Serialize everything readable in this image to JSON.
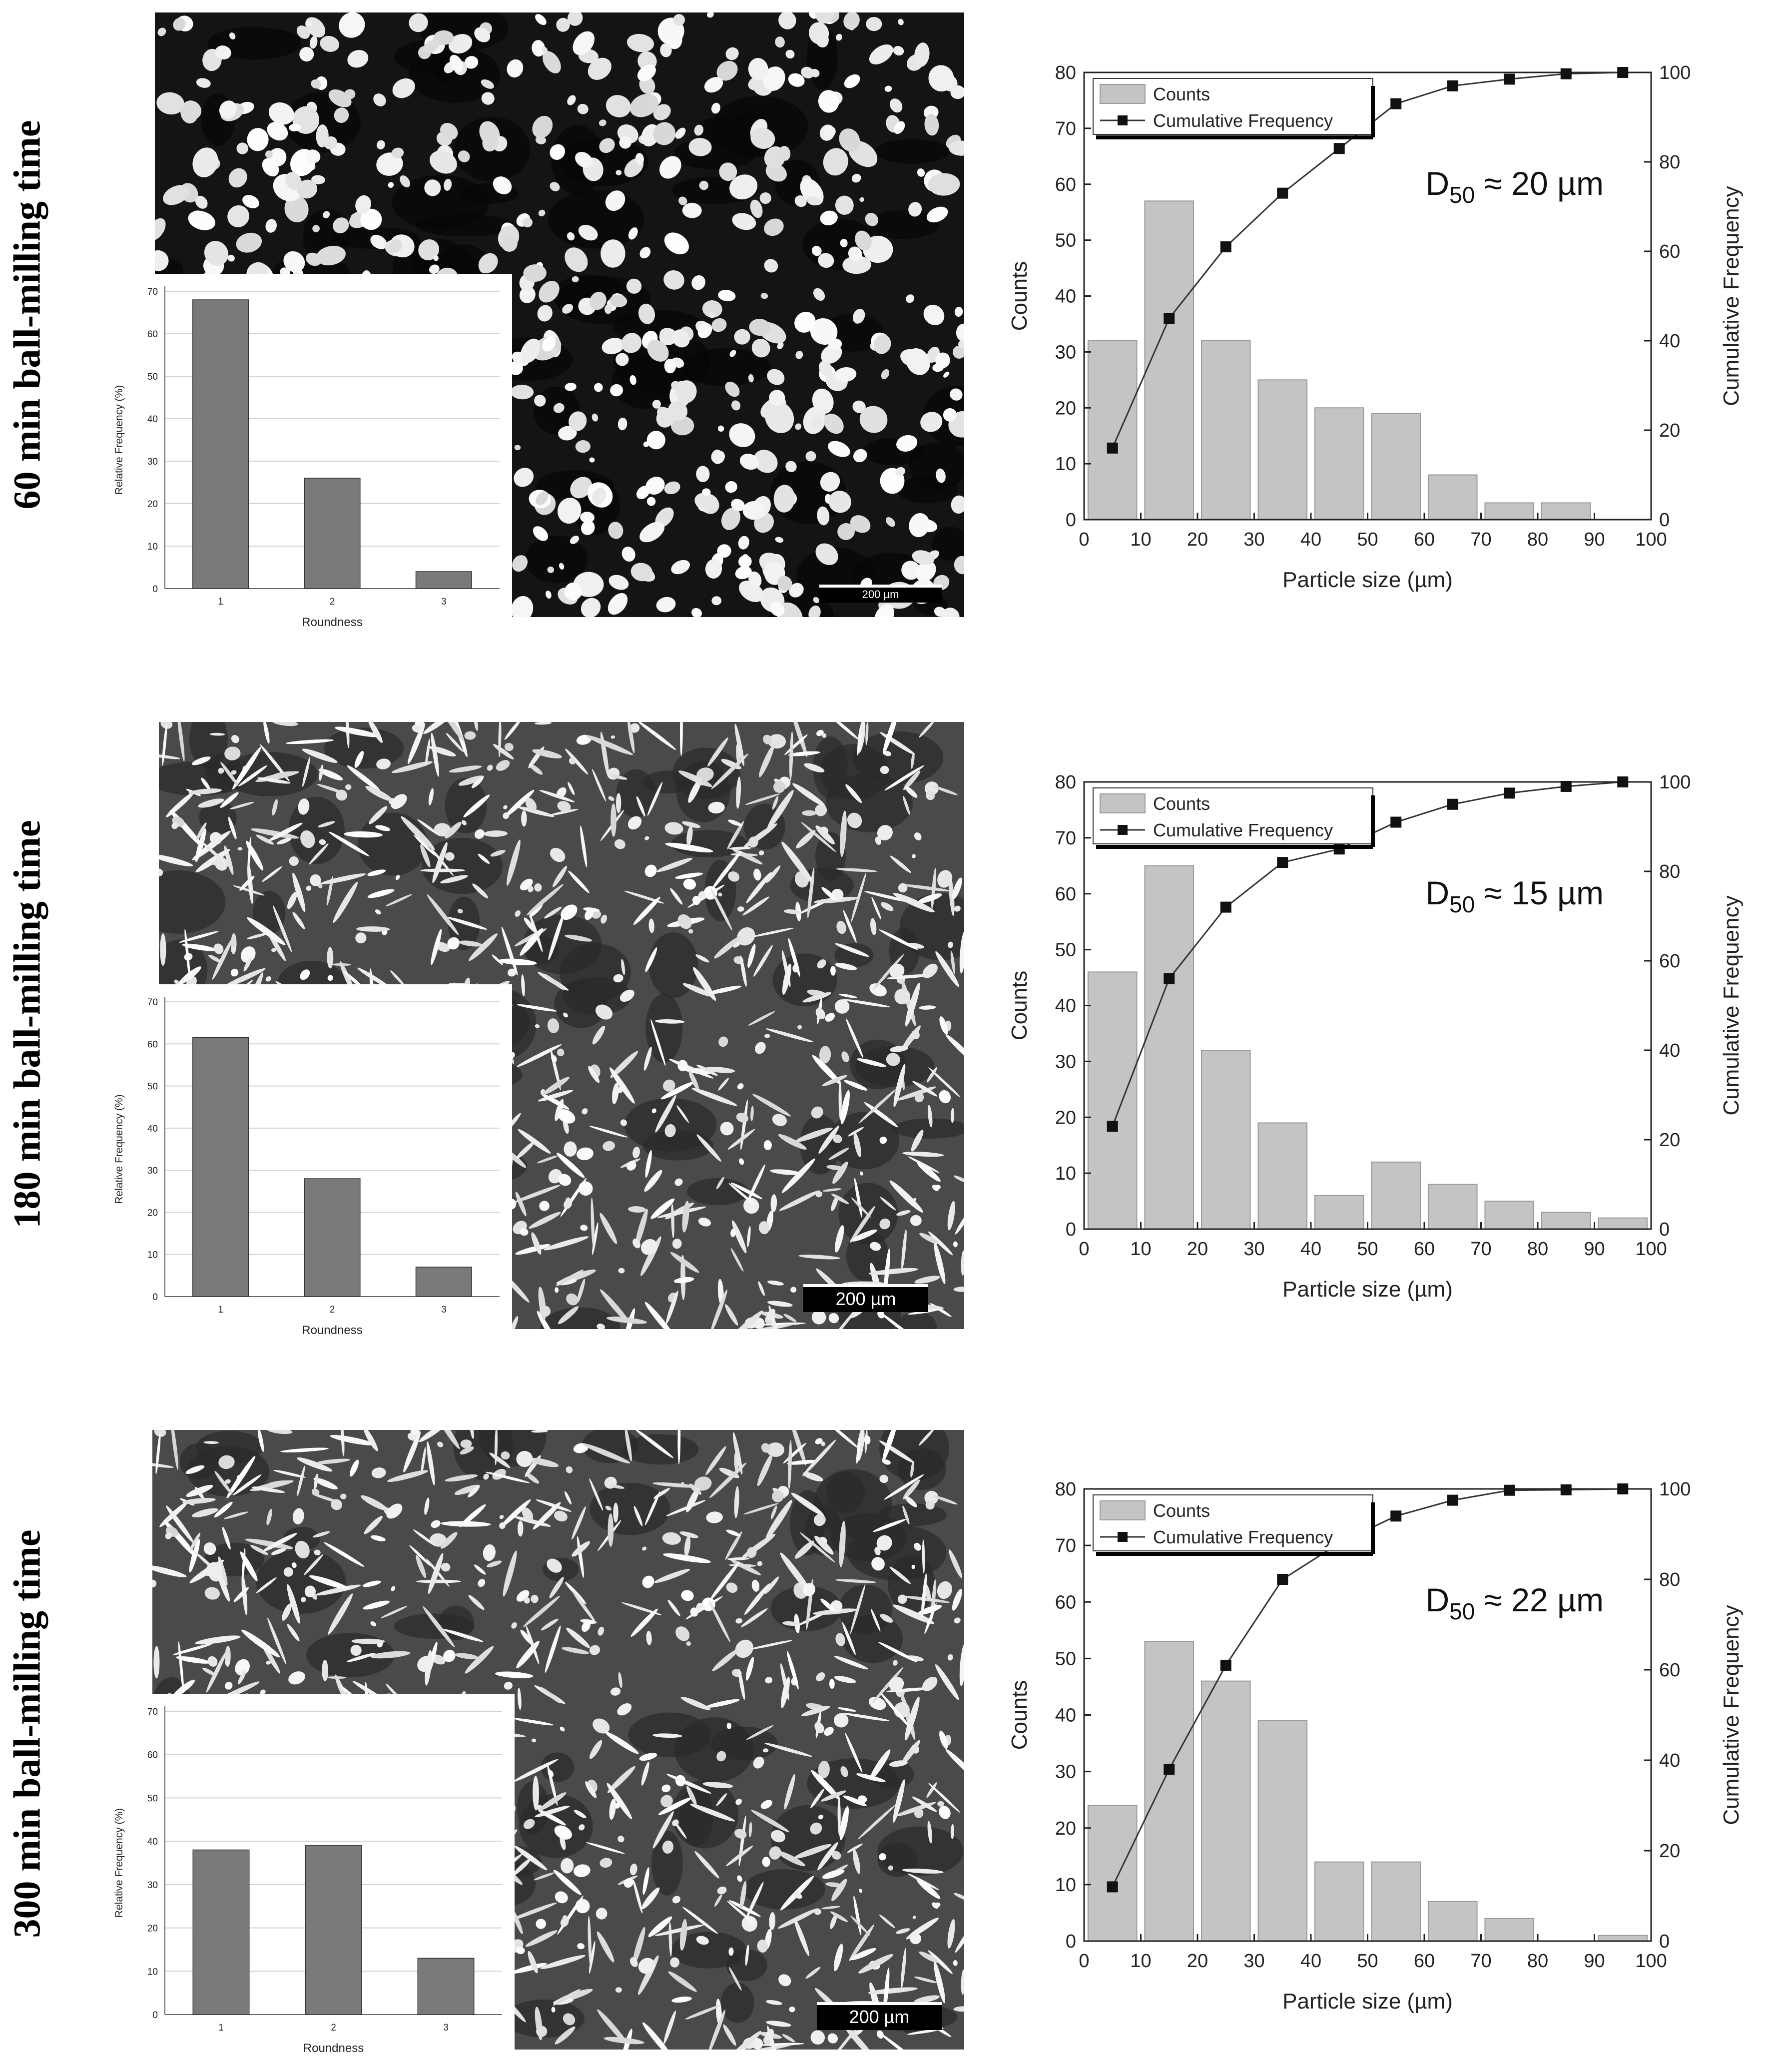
{
  "rows": [
    {
      "label": "60 min ball-milling time",
      "scale_label": "200 µm",
      "d50_main": "D",
      "d50_sub": "50",
      "d50_value": "≈ 20 µm"
    },
    {
      "label": "180 min ball-milling time",
      "scale_label": "200 µm",
      "d50_main": "D",
      "d50_sub": "50",
      "d50_value": "≈ 15 µm"
    },
    {
      "label": "300 min ball-milling time",
      "scale_label": "200 µm",
      "d50_main": "D",
      "d50_sub": "50",
      "d50_value": "≈ 22 µm"
    }
  ],
  "chart_data": [
    {
      "type": "bar",
      "role": "particle-size-histogram",
      "xlabel": "Particle size (µm)",
      "ylabel": "Counts",
      "y2label": "Cumulative Frequency",
      "xlim": [
        0,
        100
      ],
      "ylim": [
        0,
        80
      ],
      "y2lim": [
        0,
        100
      ],
      "xticks": [
        "0",
        "10",
        "20",
        "30",
        "40",
        "50",
        "60",
        "70",
        "80",
        "90",
        "100"
      ],
      "yticks": [
        "0",
        "10",
        "20",
        "30",
        "40",
        "50",
        "60",
        "70",
        "80"
      ],
      "y2ticks": [
        "0",
        "20",
        "40",
        "60",
        "80",
        "100"
      ],
      "legend": [
        "Counts",
        "Cumulative Frequency"
      ],
      "legend_position": "top-left",
      "bar_color": "#c4c4c4",
      "bin_centers": [
        5,
        15,
        25,
        35,
        45,
        55,
        65,
        75,
        85,
        95
      ],
      "counts": [
        32,
        57,
        32,
        25,
        20,
        19,
        8,
        3,
        3,
        0
      ],
      "cumulative": [
        16,
        45,
        61,
        73,
        83,
        93,
        97,
        98.5,
        99.7,
        100
      ]
    },
    {
      "type": "bar",
      "role": "roundness-inset",
      "xlabel": "Roundness",
      "ylabel": "Relative Frequency (%)",
      "categories": [
        "1",
        "2",
        "3"
      ],
      "values": [
        68,
        26,
        4
      ],
      "ylim": [
        0,
        70
      ],
      "yticks": [
        "0",
        "10",
        "20",
        "30",
        "40",
        "50",
        "60",
        "70"
      ],
      "bar_color": "#7a7a7a"
    },
    {
      "type": "bar",
      "role": "particle-size-histogram",
      "xlabel": "Particle size (µm)",
      "ylabel": "Counts",
      "y2label": "Cumulative Frequency",
      "xlim": [
        0,
        100
      ],
      "ylim": [
        0,
        80
      ],
      "y2lim": [
        0,
        100
      ],
      "xticks": [
        "0",
        "10",
        "20",
        "30",
        "40",
        "50",
        "60",
        "70",
        "80",
        "90",
        "100"
      ],
      "yticks": [
        "0",
        "10",
        "20",
        "30",
        "40",
        "50",
        "60",
        "70",
        "80"
      ],
      "y2ticks": [
        "0",
        "20",
        "40",
        "60",
        "80",
        "100"
      ],
      "legend": [
        "Counts",
        "Cumulative Frequency"
      ],
      "legend_position": "top-left",
      "bar_color": "#c4c4c4",
      "bin_centers": [
        5,
        15,
        25,
        35,
        45,
        55,
        65,
        75,
        85,
        95
      ],
      "counts": [
        46,
        65,
        32,
        19,
        6,
        12,
        8,
        5,
        3,
        2
      ],
      "cumulative": [
        23,
        56,
        72,
        82,
        85,
        91,
        95,
        97.5,
        99,
        100
      ]
    },
    {
      "type": "bar",
      "role": "roundness-inset",
      "xlabel": "Roundness",
      "ylabel": "Relative Frequency (%)",
      "categories": [
        "1",
        "2",
        "3"
      ],
      "values": [
        61.5,
        28,
        7
      ],
      "ylim": [
        0,
        70
      ],
      "yticks": [
        "0",
        "10",
        "20",
        "30",
        "40",
        "50",
        "60",
        "70"
      ],
      "bar_color": "#7a7a7a"
    },
    {
      "type": "bar",
      "role": "particle-size-histogram",
      "xlabel": "Particle size (µm)",
      "ylabel": "Counts",
      "y2label": "Cumulative Frequency",
      "xlim": [
        0,
        100
      ],
      "ylim": [
        0,
        80
      ],
      "y2lim": [
        0,
        100
      ],
      "xticks": [
        "0",
        "10",
        "20",
        "30",
        "40",
        "50",
        "60",
        "70",
        "80",
        "90",
        "100"
      ],
      "yticks": [
        "0",
        "10",
        "20",
        "30",
        "40",
        "50",
        "60",
        "70",
        "80"
      ],
      "y2ticks": [
        "0",
        "20",
        "40",
        "60",
        "80",
        "100"
      ],
      "legend": [
        "Counts",
        "Cumulative Frequency"
      ],
      "legend_position": "top-left",
      "bar_color": "#c4c4c4",
      "bin_centers": [
        5,
        15,
        25,
        35,
        45,
        55,
        65,
        75,
        85,
        95
      ],
      "counts": [
        24,
        53,
        46,
        39,
        14,
        14,
        7,
        4,
        0,
        1
      ],
      "cumulative": [
        12,
        38,
        61,
        80,
        88,
        94,
        97.5,
        99.7,
        99.8,
        100
      ]
    },
    {
      "type": "bar",
      "role": "roundness-inset",
      "xlabel": "Roundness",
      "ylabel": "Relative Frequency (%)",
      "categories": [
        "1",
        "2",
        "3"
      ],
      "values": [
        38,
        39,
        13
      ],
      "ylim": [
        0,
        70
      ],
      "yticks": [
        "0",
        "10",
        "20",
        "30",
        "40",
        "50",
        "60",
        "70"
      ],
      "bar_color": "#7a7a7a"
    }
  ]
}
